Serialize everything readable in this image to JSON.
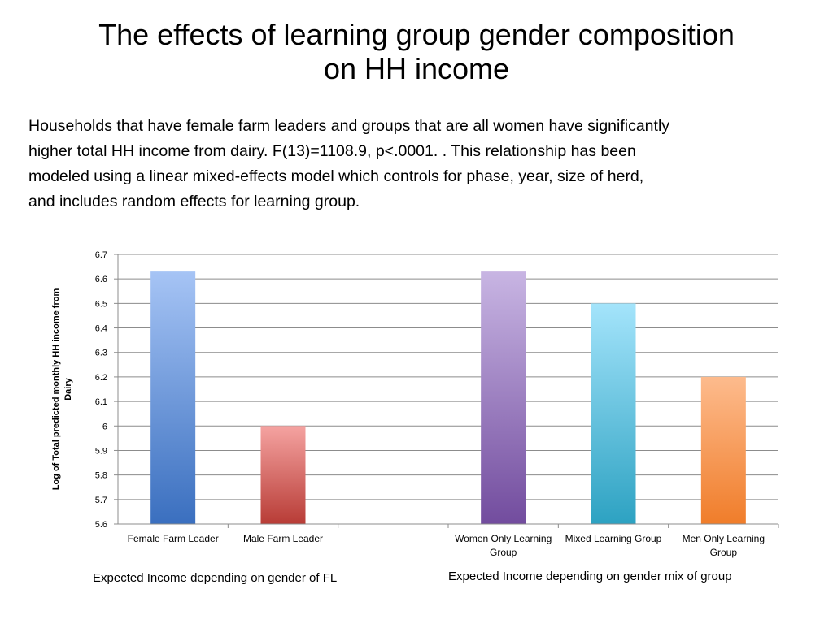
{
  "slide": {
    "title_lines": [
      "The effects of learning group gender composition",
      "on HH income"
    ],
    "body_lines": [
      "Households that have female farm leaders and groups that are all women have significantly",
      "higher total HH income from dairy.  F(13)=1108.9, p<.0001. .  This relationship has been",
      "modeled using a linear mixed-effects model which controls for phase, year, size of herd,",
      "and includes random effects for learning group."
    ],
    "caption_left": "Expected Income depending on gender of FL",
    "caption_right": "Expected Income depending on gender mix of group"
  },
  "chart_data": {
    "type": "bar",
    "ylabel_lines": [
      "Log of Total predicted monthly HH income from",
      "Dairy"
    ],
    "xlabel": "",
    "ylim": [
      5.6,
      6.7
    ],
    "yticks": [
      "5.6",
      "5.7",
      "5.8",
      "5.9",
      "6",
      "6.1",
      "6.2",
      "6.3",
      "6.4",
      "6.5",
      "6.6",
      "6.7"
    ],
    "grid": true,
    "categories": [
      [
        "Female Farm Leader"
      ],
      [
        "Male Farm Leader"
      ],
      [
        ""
      ],
      [
        "Women Only Learning",
        "Group"
      ],
      [
        "Mixed Learning Group"
      ],
      [
        "Men Only Learning",
        "Group"
      ]
    ],
    "values": [
      6.63,
      6.0,
      null,
      6.63,
      6.5,
      6.2
    ],
    "colors": [
      [
        "#a6c4f5",
        "#3a6fbf"
      ],
      [
        "#f5a3a1",
        "#b83c36"
      ],
      null,
      [
        "#c8b5e3",
        "#724c9e"
      ],
      [
        "#a4e4fb",
        "#2da2c2"
      ],
      [
        "#fdbb8d",
        "#f07d2a"
      ]
    ]
  }
}
